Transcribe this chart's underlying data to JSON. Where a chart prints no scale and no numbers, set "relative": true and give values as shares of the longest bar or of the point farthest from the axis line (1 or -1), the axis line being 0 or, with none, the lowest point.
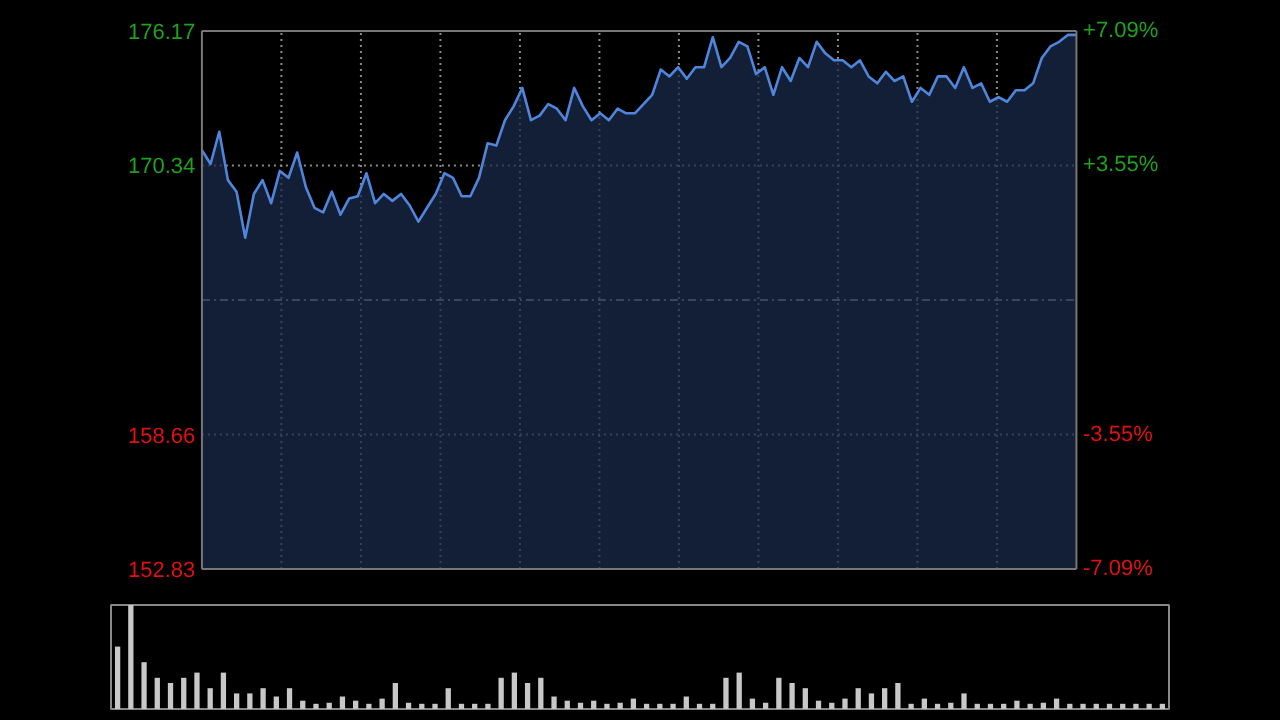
{
  "chart_data": [
    {
      "type": "area",
      "ylim": [
        152.83,
        176.17
      ],
      "categories": [
        null,
        null,
        null,
        null,
        null,
        null,
        null,
        null,
        null,
        null,
        null,
        null,
        null,
        null,
        null,
        null,
        null,
        null,
        null,
        null,
        null,
        null,
        null,
        null,
        null,
        null,
        null,
        null,
        null,
        null,
        null,
        null,
        null,
        null,
        null,
        null,
        null,
        null,
        null,
        null,
        null,
        null,
        null,
        null,
        null,
        null,
        null,
        null,
        null,
        null,
        null,
        null,
        null,
        null,
        null,
        null,
        null,
        null,
        null,
        null,
        null,
        null,
        null,
        null,
        null,
        null,
        null,
        null,
        null,
        null,
        null,
        null,
        null,
        null,
        null,
        null,
        null,
        null,
        null,
        null,
        null,
        null,
        null,
        null,
        null,
        null,
        null,
        null,
        null,
        null,
        null,
        null,
        null,
        null,
        null,
        null,
        null,
        null,
        null,
        null,
        null,
        null
      ],
      "yticks": [
        152.83,
        158.66,
        170.34,
        176.17
      ],
      "y2lim": [
        -7.09,
        7.09
      ],
      "y2ticks": [
        {
          "value": -7.09,
          "label": "-7.09%"
        },
        {
          "value": -3.55,
          "label": "-3.55%"
        },
        {
          "value": 3.55,
          "label": "+3.55%"
        },
        {
          "value": 7.09,
          "label": "+7.09%"
        }
      ],
      "tick_labels": "y",
      "grid": true,
      "ref_lines": [
        {
          "axis": "y",
          "value": 164.5,
          "label": null,
          "line_style": "dashdot",
          "color": "#9a9a9a"
        }
      ],
      "series": [
        {
          "color": "#4f86dc",
          "values": [
            171.0,
            170.4,
            171.8,
            169.7,
            169.2,
            167.2,
            169.1,
            169.7,
            168.7,
            170.1,
            169.8,
            170.9,
            169.4,
            168.5,
            168.3,
            169.2,
            168.2,
            168.9,
            169.0,
            170.0,
            168.7,
            169.1,
            168.8,
            169.1,
            168.6,
            167.9,
            168.5,
            169.1,
            170.0,
            169.8,
            169.0,
            169.0,
            169.8,
            171.3,
            171.2,
            172.3,
            172.9,
            173.7,
            172.3,
            172.5,
            173.0,
            172.8,
            172.3,
            173.7,
            172.9,
            172.3,
            172.6,
            172.3,
            172.8,
            172.6,
            172.6,
            173.0,
            173.4,
            174.5,
            174.2,
            174.6,
            174.1,
            174.6,
            174.6,
            175.9,
            174.6,
            175.0,
            175.7,
            175.5,
            174.3,
            174.6,
            173.4,
            174.6,
            174.0,
            175.0,
            174.6,
            175.7,
            175.2,
            174.9,
            174.9,
            174.6,
            174.9,
            174.2,
            173.9,
            174.4,
            174.0,
            174.2,
            173.1,
            173.7,
            173.4,
            174.2,
            174.2,
            173.7,
            174.6,
            173.7,
            173.9,
            173.1,
            173.3,
            173.1,
            173.6,
            173.6,
            173.9,
            175.0,
            175.5,
            175.7,
            176.0,
            176.0
          ]
        }
      ]
    },
    {
      "type": "bar",
      "relative": true,
      "color": "#c8c8c8",
      "categories": [
        null,
        null,
        null,
        null,
        null,
        null,
        null,
        null,
        null,
        null,
        null,
        null,
        null,
        null,
        null,
        null,
        null,
        null,
        null,
        null,
        null,
        null,
        null,
        null,
        null,
        null,
        null,
        null,
        null,
        null,
        null,
        null,
        null,
        null,
        null,
        null,
        null,
        null,
        null,
        null,
        null,
        null,
        null,
        null,
        null,
        null,
        null,
        null,
        null,
        null,
        null,
        null,
        null,
        null,
        null,
        null,
        null,
        null,
        null,
        null,
        null,
        null,
        null,
        null,
        null,
        null,
        null,
        null,
        null,
        null,
        null,
        null,
        null,
        null,
        null,
        null,
        null,
        null,
        null,
        null
      ],
      "values": [
        0.6,
        1.0,
        0.45,
        0.3,
        0.25,
        0.3,
        0.35,
        0.2,
        0.35,
        0.15,
        0.15,
        0.2,
        0.12,
        0.2,
        0.08,
        0.05,
        0.06,
        0.12,
        0.08,
        0.05,
        0.1,
        0.25,
        0.06,
        0.05,
        0.05,
        0.2,
        0.05,
        0.05,
        0.05,
        0.3,
        0.35,
        0.25,
        0.3,
        0.12,
        0.08,
        0.06,
        0.08,
        0.05,
        0.06,
        0.1,
        0.05,
        0.05,
        0.05,
        0.12,
        0.05,
        0.05,
        0.3,
        0.35,
        0.1,
        0.06,
        0.3,
        0.25,
        0.2,
        0.08,
        0.06,
        0.1,
        0.2,
        0.15,
        0.2,
        0.25,
        0.05,
        0.1,
        0.05,
        0.06,
        0.15,
        0.05,
        0.05,
        0.05,
        0.08,
        0.05,
        0.06,
        0.1,
        0.05,
        0.05,
        0.05,
        0.05,
        0.05,
        0.05,
        0.05,
        0.05
      ]
    }
  ]
}
